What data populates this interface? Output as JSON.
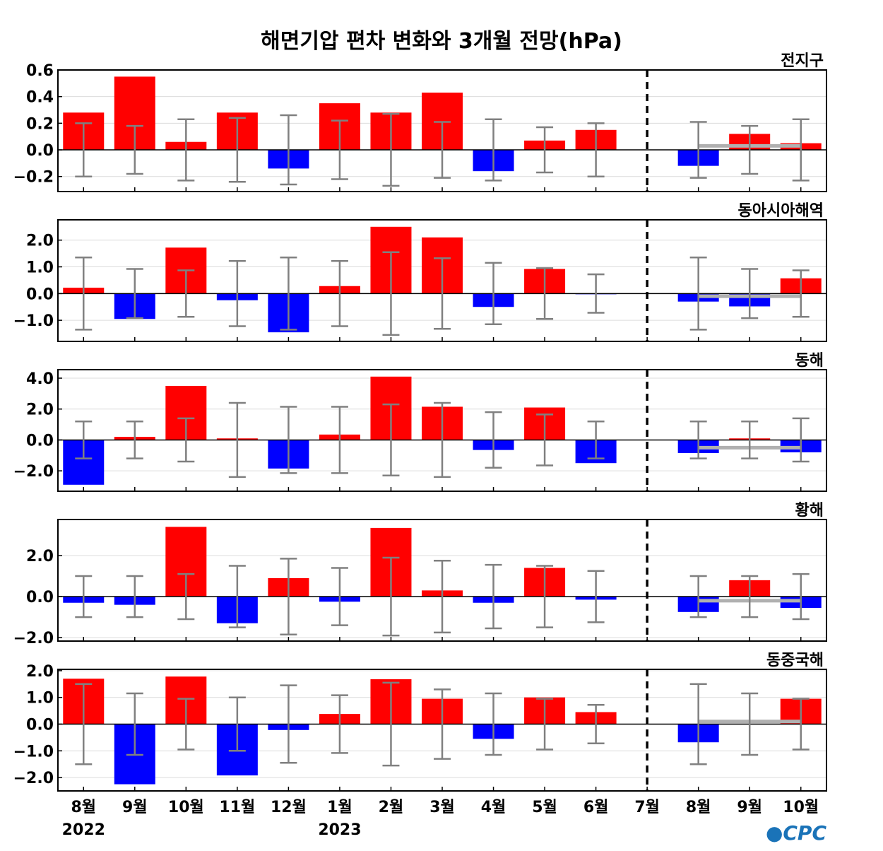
{
  "chart_data": {
    "type": "bar",
    "title": "해면기압 편차 변화와 3개월 전망(hPa)",
    "categories": [
      "8월",
      "9월",
      "10월",
      "11월",
      "12월",
      "1월",
      "2월",
      "3월",
      "4월",
      "5월",
      "6월",
      "7월",
      "8월",
      "9월",
      "10월"
    ],
    "year_labels": [
      {
        "label": "2022",
        "category_index": 0
      },
      {
        "label": "2023",
        "category_index": 5
      }
    ],
    "divider_category_index": 11,
    "logo": "CPC",
    "colors": {
      "positive": "#ff0000",
      "negative": "#0000ff",
      "error_bar": "#808080",
      "forecast_line": "#b0b0b0",
      "grid": "#dcdcdc"
    },
    "panels": [
      {
        "name": "전지구",
        "ylim": [
          -0.313,
          0.6
        ],
        "yticks": [
          -0.2,
          0.0,
          0.2,
          0.4,
          0.6
        ],
        "tick_decimals": 1,
        "values": [
          0.28,
          0.55,
          0.06,
          0.28,
          -0.14,
          0.35,
          0.28,
          0.43,
          -0.16,
          0.07,
          0.15,
          0,
          -0.12,
          0.12,
          0.05
        ],
        "errors": [
          0.2,
          0.18,
          0.23,
          0.24,
          0.26,
          0.22,
          0.27,
          0.21,
          0.23,
          0.17,
          0.2,
          null,
          0.21,
          0.18,
          0.23
        ],
        "forecast_mean": 0.03
      },
      {
        "name": "동아시아해역",
        "ylim": [
          -1.79,
          2.76
        ],
        "yticks": [
          -1.0,
          0.0,
          1.0,
          2.0
        ],
        "tick_decimals": 1,
        "values": [
          0.22,
          -0.95,
          1.72,
          -0.25,
          -1.45,
          0.28,
          2.5,
          2.1,
          -0.5,
          0.92,
          -0.02,
          0,
          -0.3,
          -0.48,
          0.57
        ],
        "errors": [
          1.35,
          0.92,
          0.87,
          1.22,
          1.35,
          1.22,
          1.55,
          1.32,
          1.15,
          0.95,
          0.72,
          null,
          1.35,
          0.92,
          0.87
        ],
        "forecast_mean": -0.1
      },
      {
        "name": "동해",
        "ylim": [
          -3.32,
          4.55
        ],
        "yticks": [
          -2.0,
          0.0,
          2.0,
          4.0
        ],
        "tick_decimals": 1,
        "values": [
          -2.9,
          0.2,
          3.5,
          0.1,
          -1.85,
          0.35,
          4.1,
          2.15,
          -0.65,
          2.1,
          -1.5,
          0,
          -0.85,
          0.1,
          -0.8
        ],
        "errors": [
          1.2,
          1.2,
          1.4,
          2.4,
          2.15,
          2.15,
          2.3,
          2.4,
          1.8,
          1.65,
          1.2,
          null,
          1.2,
          1.2,
          1.4
        ],
        "forecast_mean": -0.5
      },
      {
        "name": "황해",
        "ylim": [
          -2.17,
          3.76
        ],
        "yticks": [
          -2.0,
          0.0,
          2.0
        ],
        "tick_decimals": 1,
        "values": [
          -0.3,
          -0.4,
          3.4,
          -1.3,
          0.9,
          -0.25,
          3.35,
          0.3,
          -0.3,
          1.4,
          -0.15,
          0,
          -0.75,
          0.8,
          -0.55
        ],
        "errors": [
          1.0,
          1.0,
          1.1,
          1.5,
          1.85,
          1.4,
          1.9,
          1.75,
          1.55,
          1.5,
          1.25,
          null,
          1.0,
          1.0,
          1.1
        ],
        "forecast_mean": -0.2
      },
      {
        "name": "동중국해",
        "ylim": [
          -2.5,
          2.05
        ],
        "yticks": [
          -2.0,
          -1.0,
          0.0,
          1.0,
          2.0
        ],
        "tick_decimals": 1,
        "values": [
          1.7,
          -2.25,
          1.78,
          -1.92,
          -0.22,
          0.38,
          1.68,
          0.95,
          -0.55,
          1.0,
          0.45,
          0,
          -0.68,
          0.0,
          0.95
        ],
        "errors": [
          1.5,
          1.15,
          0.95,
          1.0,
          1.45,
          1.08,
          1.55,
          1.3,
          1.15,
          0.95,
          0.72,
          null,
          1.5,
          1.15,
          0.95
        ],
        "forecast_mean": 0.1
      }
    ]
  }
}
